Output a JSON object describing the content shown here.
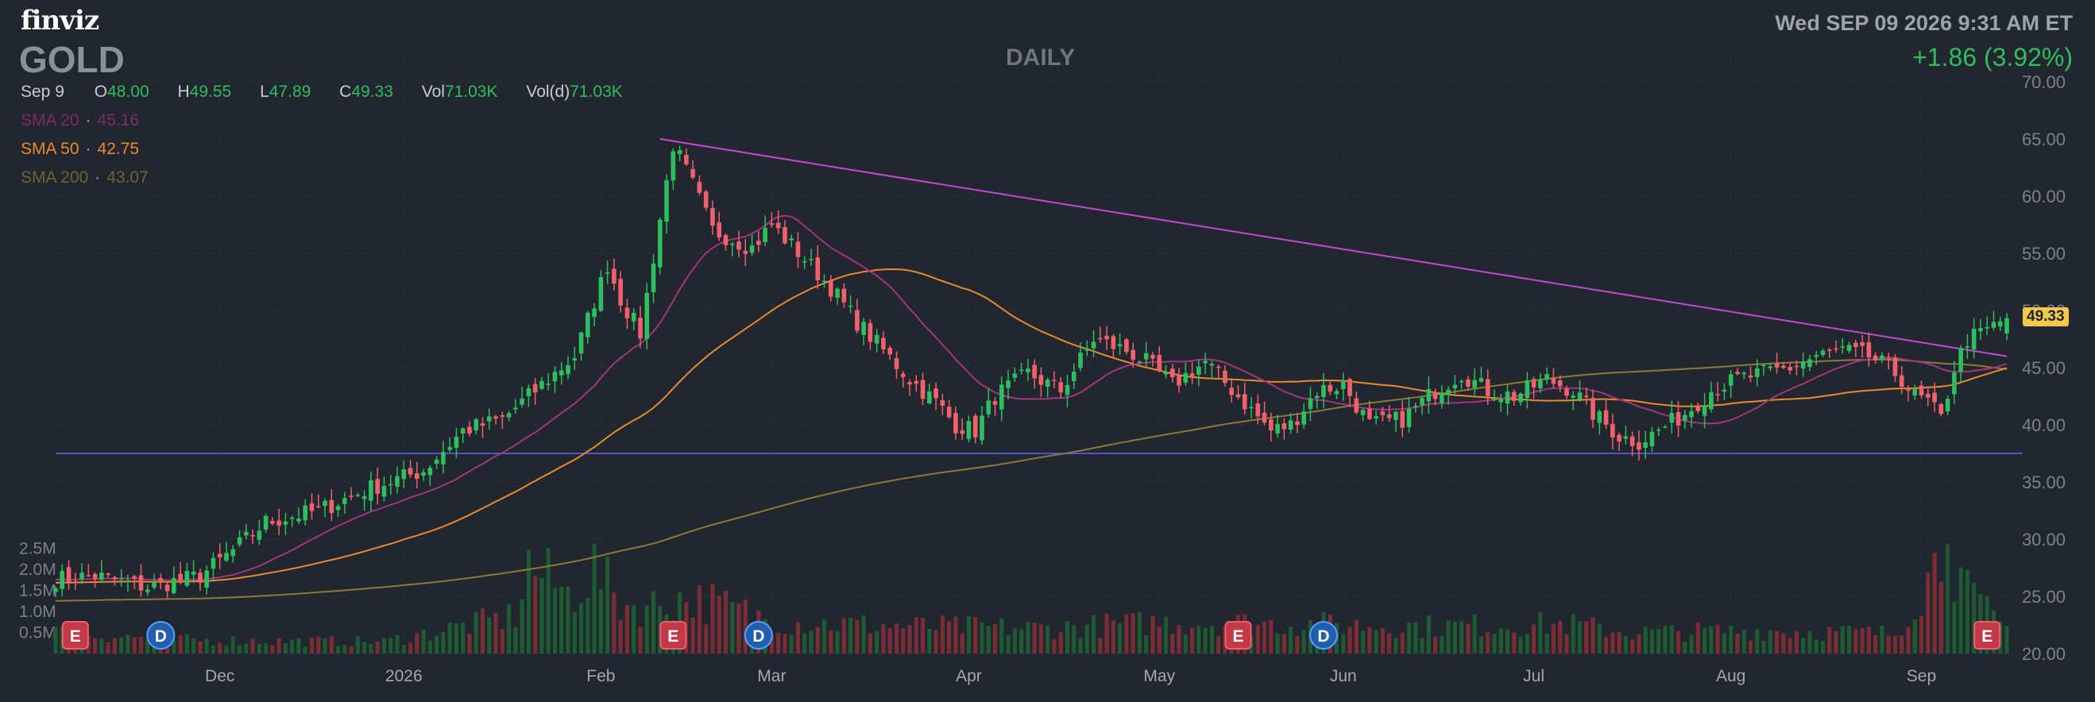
{
  "header": {
    "logo": "finviz",
    "ticker": "GOLD",
    "timeframe": "DAILY",
    "datetime": "Wed SEP 09 2026 9:31 AM ET",
    "change": "+1.86 (3.92%)"
  },
  "ohlc": {
    "date": "Sep 9",
    "o_label": "O",
    "o": "48.00",
    "h_label": "H",
    "h": "49.55",
    "l_label": "L",
    "l": "47.89",
    "c_label": "C",
    "c": "49.33",
    "vol_label": "Vol",
    "vol": "71.03K",
    "vold_label": "Vol(d)",
    "vold": "71.03K"
  },
  "indicators": [
    {
      "label": "SMA 20",
      "value": "45.16",
      "color": "#a3357d"
    },
    {
      "label": "SMA 50",
      "value": "42.75",
      "color": "#e88a2e"
    },
    {
      "label": "SMA 200",
      "value": "43.07",
      "color": "#8a7a3a"
    }
  ],
  "last_price": "49.33",
  "colors": {
    "up": "#2ebd5f",
    "down": "#f0616d",
    "trendline": "#c447d6",
    "support": "#4a55c9",
    "volume_up": "#1e5b34",
    "volume_down": "#7a2d37",
    "background": "#22262f"
  },
  "events": [
    {
      "type": "E",
      "date_index": 3
    },
    {
      "type": "D",
      "date_index": 16
    },
    {
      "type": "E",
      "date_index": 94
    },
    {
      "type": "D",
      "date_index": 107
    },
    {
      "type": "E",
      "date_index": 180
    },
    {
      "type": "D",
      "date_index": 193
    },
    {
      "type": "E",
      "date_index": 294
    }
  ],
  "chart_data": {
    "type": "candlestick",
    "price_axis": {
      "ylim": [
        20,
        70
      ],
      "ticks": [
        "70.00",
        "65.00",
        "60.00",
        "55.00",
        "50.00",
        "45.00",
        "40.00",
        "35.00",
        "30.00",
        "25.00",
        "20.00"
      ]
    },
    "volume_axis": {
      "ylim": [
        0,
        3000000
      ],
      "ticks": [
        "2.5M",
        "2.0M",
        "1.5M",
        "1.0M",
        "0.5M"
      ]
    },
    "x_axis": {
      "ticks": [
        {
          "label": "Dec",
          "index": 25
        },
        {
          "label": "2026",
          "index": 53
        },
        {
          "label": "Feb",
          "index": 83
        },
        {
          "label": "Mar",
          "index": 109
        },
        {
          "label": "Apr",
          "index": 139
        },
        {
          "label": "May",
          "index": 168
        },
        {
          "label": "Jun",
          "index": 196
        },
        {
          "label": "Jul",
          "index": 225
        },
        {
          "label": "Aug",
          "index": 255
        },
        {
          "label": "Sep",
          "index": 284
        }
      ]
    },
    "n_bars": 298,
    "last_close": 49.33,
    "anchors": [
      [
        0,
        26.5
      ],
      [
        6,
        26.8
      ],
      [
        14,
        25.8
      ],
      [
        22,
        26.8
      ],
      [
        27,
        29.0
      ],
      [
        32,
        31.5
      ],
      [
        40,
        32.5
      ],
      [
        48,
        34.5
      ],
      [
        56,
        36.0
      ],
      [
        62,
        39.5
      ],
      [
        68,
        40.5
      ],
      [
        74,
        43.5
      ],
      [
        79,
        46.0
      ],
      [
        84,
        54.0
      ],
      [
        86,
        51.0
      ],
      [
        89,
        48.0
      ],
      [
        92,
        58.0
      ],
      [
        94,
        64.5
      ],
      [
        97,
        61.0
      ],
      [
        100,
        57.0
      ],
      [
        106,
        55.5
      ],
      [
        109,
        57.5
      ],
      [
        114,
        54.5
      ],
      [
        118,
        52.0
      ],
      [
        122,
        49.0
      ],
      [
        126,
        46.5
      ],
      [
        130,
        44.0
      ],
      [
        134,
        42.0
      ],
      [
        137,
        40.0
      ],
      [
        140,
        39.5
      ],
      [
        143,
        42.5
      ],
      [
        148,
        44.5
      ],
      [
        153,
        43.0
      ],
      [
        158,
        47.5
      ],
      [
        163,
        46.5
      ],
      [
        166,
        45.5
      ],
      [
        170,
        43.5
      ],
      [
        175,
        45.5
      ],
      [
        180,
        42.5
      ],
      [
        185,
        39.5
      ],
      [
        188,
        40.0
      ],
      [
        192,
        43.0
      ],
      [
        196,
        43.5
      ],
      [
        200,
        40.0
      ],
      [
        205,
        40.5
      ],
      [
        210,
        43.0
      ],
      [
        214,
        44.5
      ],
      [
        218,
        43.0
      ],
      [
        222,
        42.5
      ],
      [
        227,
        44.0
      ],
      [
        231,
        43.0
      ],
      [
        234,
        41.0
      ],
      [
        238,
        39.0
      ],
      [
        241,
        38.5
      ],
      [
        244,
        39.5
      ],
      [
        248,
        41.0
      ],
      [
        252,
        43.0
      ],
      [
        256,
        44.0
      ],
      [
        260,
        44.5
      ],
      [
        264,
        45.0
      ],
      [
        268,
        46.0
      ],
      [
        272,
        46.5
      ],
      [
        276,
        46.0
      ],
      [
        279,
        45.0
      ],
      [
        281,
        44.0
      ],
      [
        283,
        42.5
      ],
      [
        285,
        42.0
      ],
      [
        287,
        40.5
      ],
      [
        289,
        45.0
      ],
      [
        291,
        47.5
      ],
      [
        293,
        48.0
      ],
      [
        297,
        49.33
      ]
    ],
    "volume_profile": [
      [
        0,
        500000
      ],
      [
        20,
        320000
      ],
      [
        50,
        280000
      ],
      [
        70,
        900000
      ],
      [
        72,
        2100000
      ],
      [
        78,
        1400000
      ],
      [
        82,
        2000000
      ],
      [
        86,
        1200000
      ],
      [
        90,
        1100000
      ],
      [
        94,
        1300000
      ],
      [
        96,
        1300000
      ],
      [
        100,
        1200000
      ],
      [
        110,
        750000
      ],
      [
        130,
        650000
      ],
      [
        150,
        600000
      ],
      [
        170,
        750000
      ],
      [
        190,
        700000
      ],
      [
        210,
        650000
      ],
      [
        230,
        700000
      ],
      [
        240,
        500000
      ],
      [
        260,
        550000
      ],
      [
        280,
        480000
      ],
      [
        288,
        2600000
      ],
      [
        289,
        2100000
      ],
      [
        291,
        1400000
      ],
      [
        293,
        1100000
      ],
      [
        297,
        600000
      ]
    ],
    "trendline": {
      "from": [
        92,
        65.0
      ],
      "to": [
        297,
        46.0
      ]
    },
    "support_line": {
      "y": 37.5
    },
    "sma20_final": 45.16,
    "sma50_final": 42.75,
    "sma200_final": 43.07
  }
}
